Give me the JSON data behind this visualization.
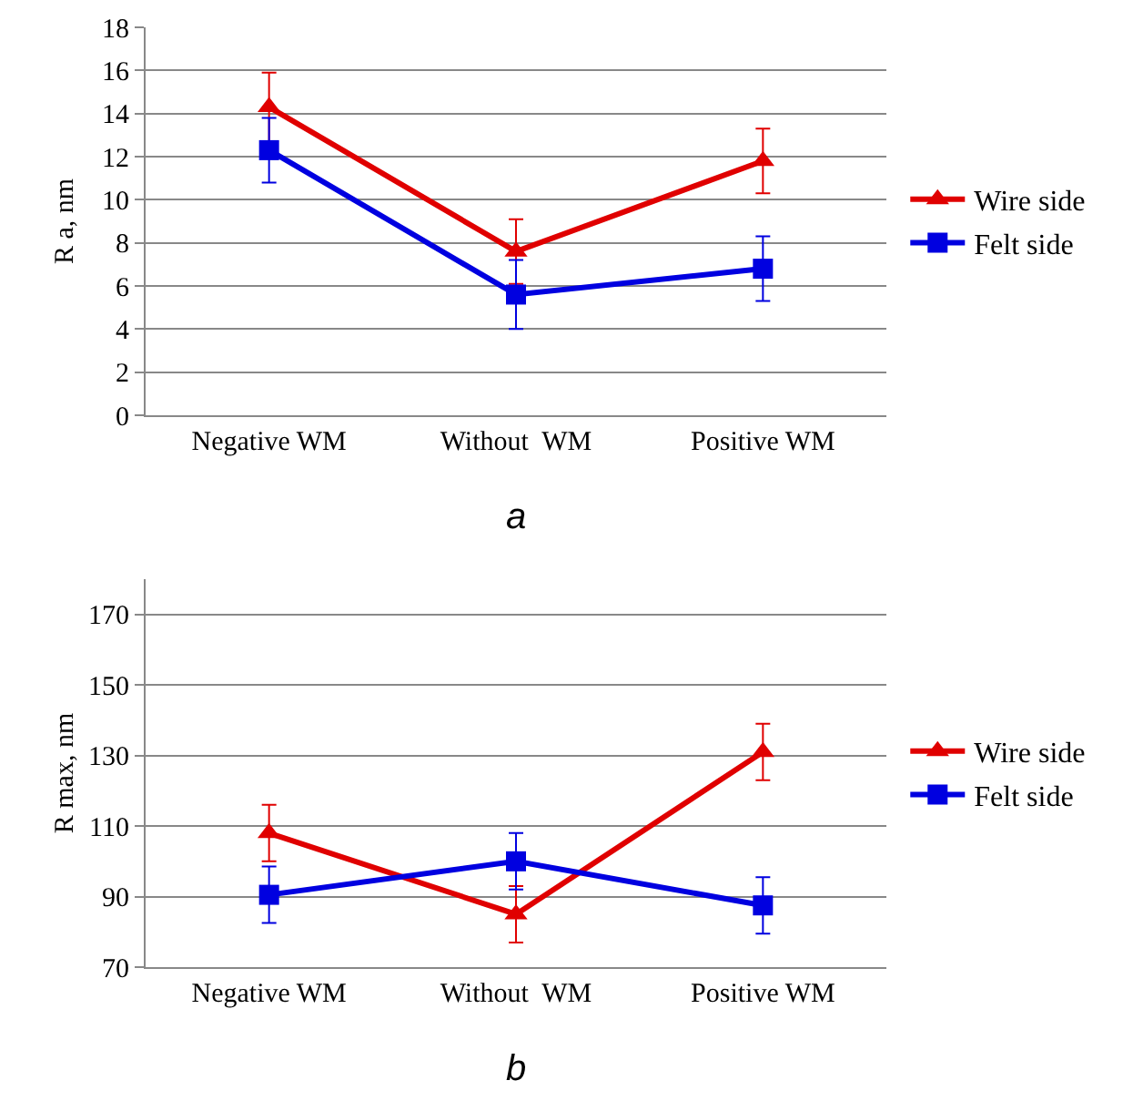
{
  "chart_data": [
    {
      "type": "line",
      "ylabel": "R a, nm",
      "categories": [
        "Negative WM",
        "Without  WM",
        "Positive WM"
      ],
      "ylim": [
        0,
        18
      ],
      "yticks": [
        0,
        2,
        4,
        6,
        8,
        10,
        12,
        14,
        16,
        18
      ],
      "grid": "y",
      "legend": "right",
      "annotations": [
        "a"
      ],
      "series": [
        {
          "name": "Wire side",
          "color": "#e00000",
          "marker": "triangle",
          "values": [
            14.3,
            7.6,
            11.8
          ],
          "errors": [
            1.6,
            1.5,
            1.5
          ]
        },
        {
          "name": "Felt side",
          "color": "#0000e0",
          "marker": "square",
          "values": [
            12.3,
            5.6,
            6.8
          ],
          "errors": [
            1.5,
            1.6,
            1.5
          ]
        }
      ]
    },
    {
      "type": "line",
      "ylabel": "R max, nm",
      "categories": [
        "Negative WM",
        "Without  WM",
        "Positive WM"
      ],
      "ylim": [
        70,
        180
      ],
      "yticks": [
        70,
        90,
        110,
        130,
        150,
        170
      ],
      "grid": "y",
      "legend": "right",
      "annotations": [
        "b"
      ],
      "series": [
        {
          "name": "Wire side",
          "color": "#e00000",
          "marker": "triangle",
          "values": [
            108,
            85,
            131
          ],
          "errors": [
            8,
            8,
            8
          ]
        },
        {
          "name": "Felt side",
          "color": "#0000e0",
          "marker": "square",
          "values": [
            90.5,
            100,
            87.5
          ],
          "errors": [
            8,
            8,
            8
          ]
        }
      ]
    }
  ]
}
